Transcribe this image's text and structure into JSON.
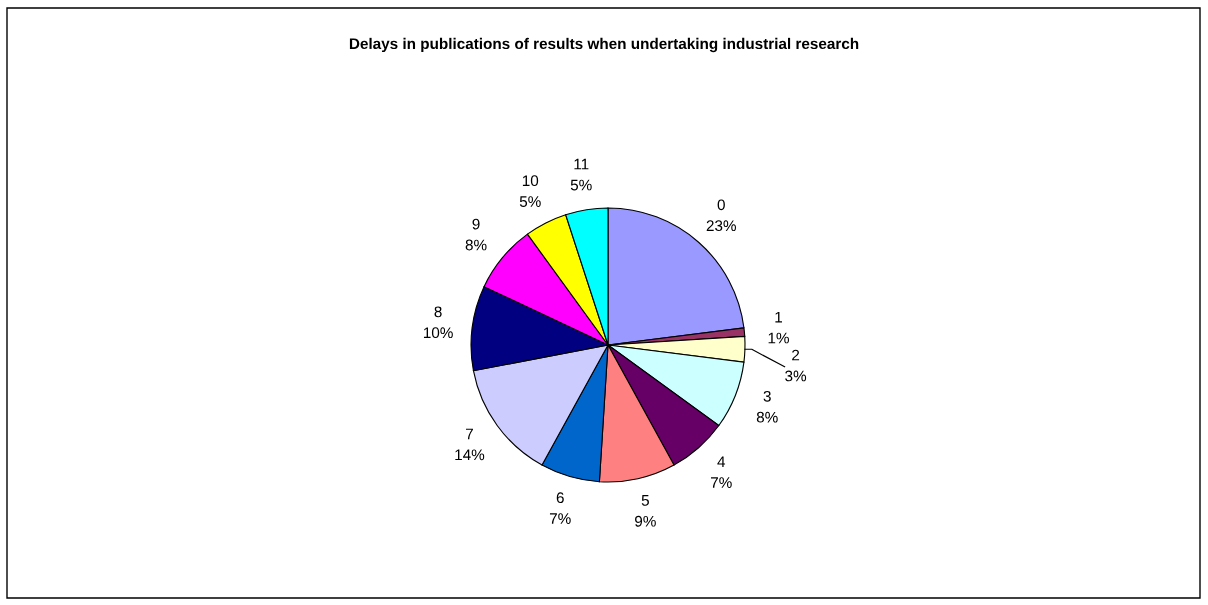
{
  "chart_data": {
    "type": "pie",
    "title": "Delays in publications of results when undertaking industrial research",
    "categories": [
      "0",
      "1",
      "2",
      "3",
      "4",
      "5",
      "6",
      "7",
      "8",
      "9",
      "10",
      "11"
    ],
    "values": [
      23,
      1,
      3,
      8,
      7,
      9,
      7,
      14,
      10,
      8,
      5,
      5
    ],
    "value_labels": [
      "23%",
      "1%",
      "3%",
      "8%",
      "7%",
      "9%",
      "7%",
      "14%",
      "10%",
      "8%",
      "5%",
      "5%"
    ],
    "colors": [
      "#9999ff",
      "#993366",
      "#ffffcc",
      "#ccffff",
      "#660066",
      "#ff8080",
      "#0066cc",
      "#ccccff",
      "#000080",
      "#ff00ff",
      "#ffff00",
      "#00ffff"
    ]
  }
}
